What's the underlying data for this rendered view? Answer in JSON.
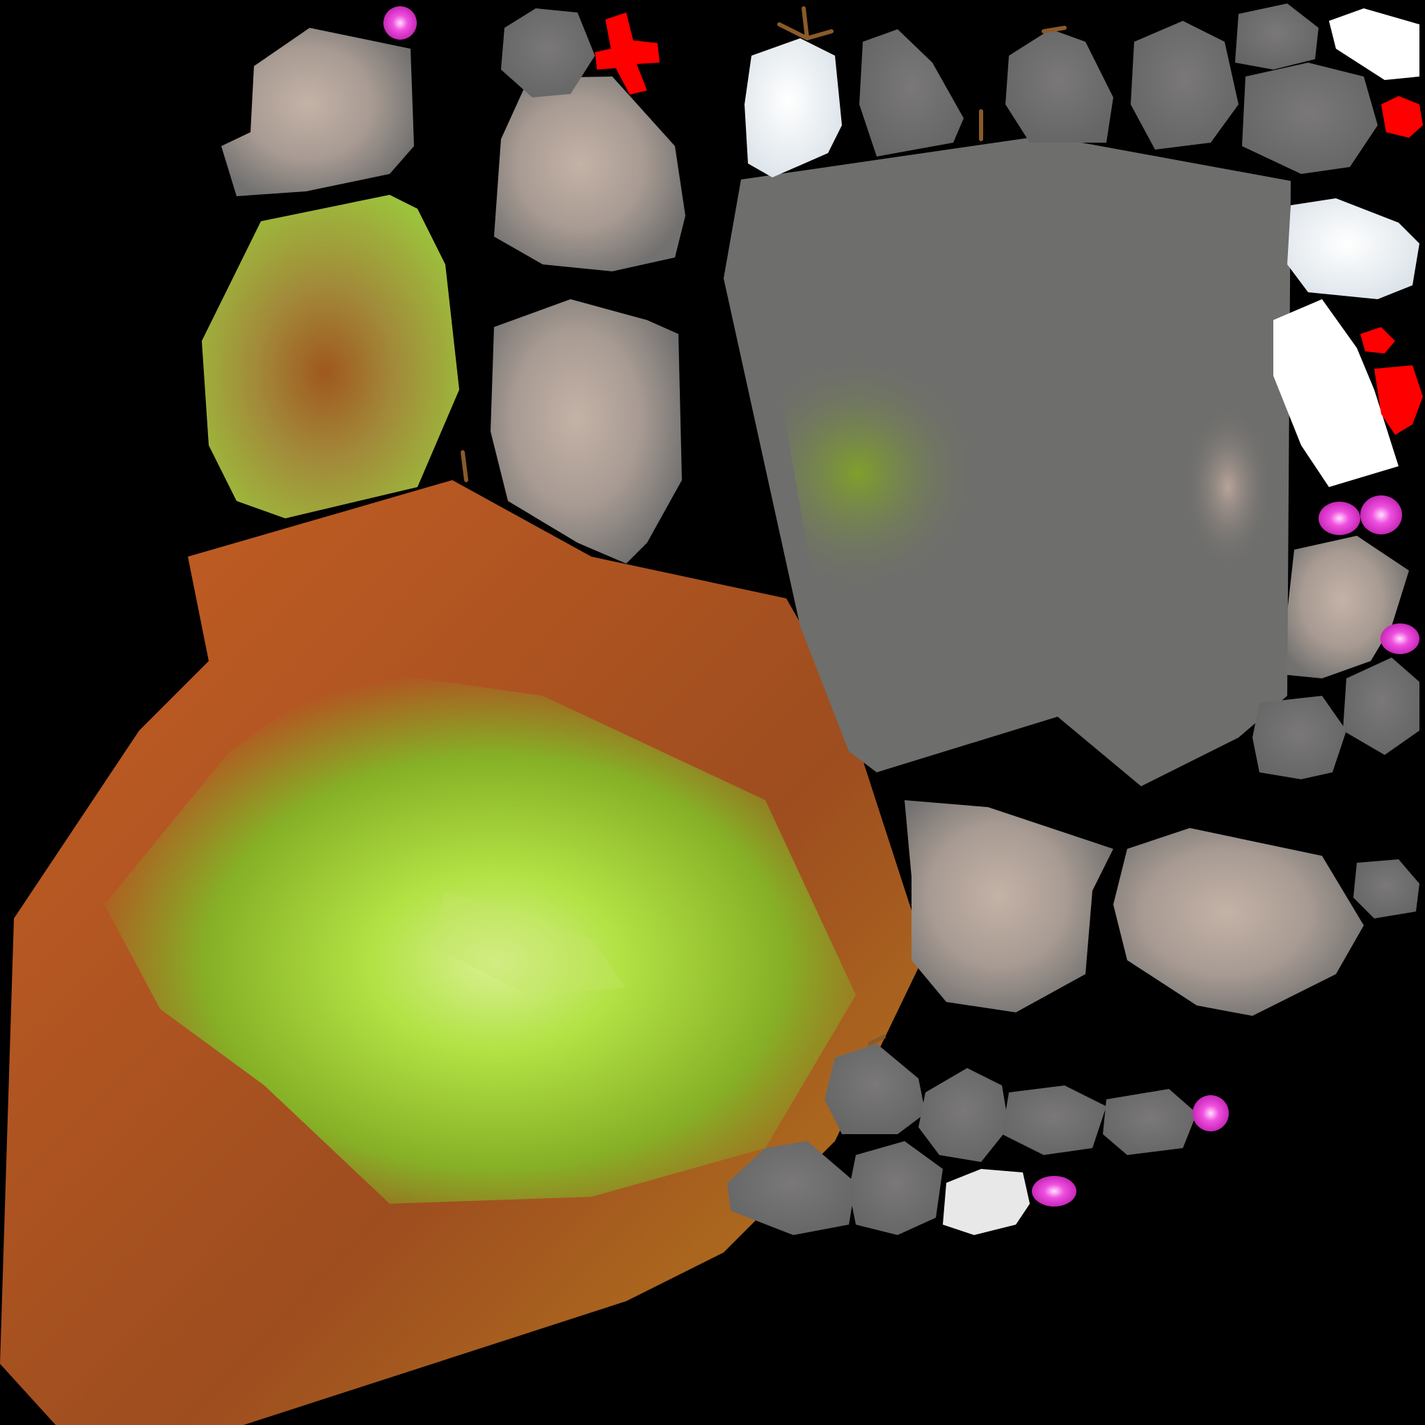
{
  "texture_atlas": {
    "background": "#000000",
    "palette": {
      "stone_gray": "#6e6e6c",
      "stone_gray_dark": "#646464",
      "stone_beige": "#b5a69c",
      "moss_green": "#a8c84a",
      "moss_bright": "#b9e64a",
      "rust_orange": "#c8602a",
      "rust_dark": "#9a4a1e",
      "snow_white": "#f4f6f8",
      "red_marker": "#ff0000",
      "pink_gem": "#e040d0",
      "twig_brown": "#8a5a2a"
    },
    "islands": [
      "beige-rock",
      "beige-rock",
      "beige-rock",
      "moss-rock",
      "rust-moss-rock",
      "gray-stone-slab",
      "snow-rock",
      "snow-rock",
      "snow-rock",
      "snow-rock",
      "gray-pebble",
      "beige-pebble",
      "pink-gem",
      "red-marker",
      "twig"
    ]
  }
}
